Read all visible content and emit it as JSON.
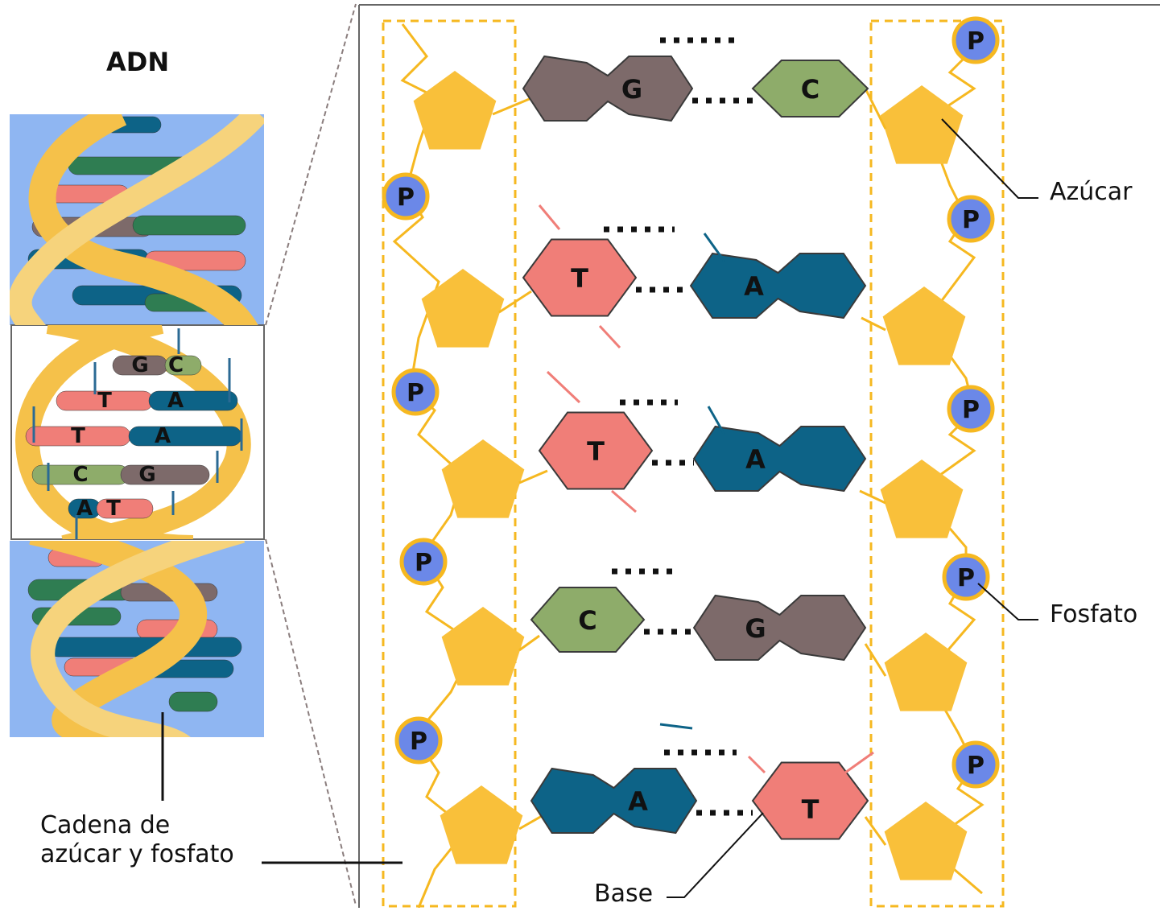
{
  "title": "ADN",
  "labels": {
    "sugar": "Azúcar",
    "phosphate": "Fosfato",
    "base": "Base",
    "backbone_line1": "Cadena de",
    "backbone_line2": "azúcar y fosfato"
  },
  "phosphate_symbol": "P",
  "detail_pairs": [
    {
      "left": "G",
      "right": "C"
    },
    {
      "left": "T",
      "right": "A"
    },
    {
      "left": "T",
      "right": "A"
    },
    {
      "left": "C",
      "right": "G"
    },
    {
      "left": "A",
      "right": "T"
    }
  ],
  "helix_pairs": [
    {
      "left": "G",
      "right": "C"
    },
    {
      "left": "T",
      "right": "A"
    },
    {
      "left": "T",
      "right": "A"
    },
    {
      "left": "C",
      "right": "G"
    },
    {
      "left": "A",
      "right": "T"
    }
  ],
  "base_colors": {
    "G": "#7d6a6a",
    "C": "#8eac6a",
    "T": "#f07e78",
    "A": "#0d6387"
  },
  "colors": {
    "sugar": "#f9c03a",
    "phosphate": "#6b88e8",
    "phosphate_ring": "#f6b820",
    "helix_bg": "#8fb6f2",
    "ribbon": "#f5c14a"
  }
}
